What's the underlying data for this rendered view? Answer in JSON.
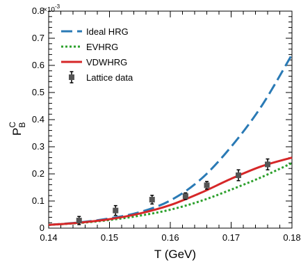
{
  "chart_data": {
    "type": "line",
    "xlabel": "T (GeV)",
    "ylabel_main": "P",
    "ylabel_sup": "C",
    "ylabel_sub": "B",
    "y_multiplier_base": "×10",
    "y_multiplier_exp": "-3",
    "xlim": [
      0.14,
      0.18
    ],
    "ylim": [
      0,
      0.8
    ],
    "x_ticks": [
      0.14,
      0.15,
      0.16,
      0.17,
      0.18
    ],
    "x_tick_labels": [
      "0.14",
      "0.15",
      "0.16",
      "0.17",
      "0.18"
    ],
    "y_ticks": [
      0,
      0.1,
      0.2,
      0.3,
      0.4,
      0.5,
      0.6,
      0.7,
      0.8
    ],
    "y_tick_labels": [
      "0",
      "0.1",
      "0.2",
      "0.3",
      "0.4",
      "0.5",
      "0.6",
      "0.7",
      "0.8"
    ],
    "legend_position": "top-left",
    "series": [
      {
        "name": "Ideal HRG",
        "style": "dashed",
        "color": "#2a7ab5",
        "x": [
          0.14,
          0.145,
          0.15,
          0.155,
          0.16,
          0.165,
          0.17,
          0.175,
          0.18
        ],
        "y": [
          0.012,
          0.021,
          0.036,
          0.059,
          0.102,
          0.18,
          0.3,
          0.45,
          0.64
        ]
      },
      {
        "name": "EVHRG",
        "style": "dotted",
        "color": "#2ca02c",
        "x": [
          0.14,
          0.145,
          0.15,
          0.155,
          0.16,
          0.165,
          0.17,
          0.175,
          0.18
        ],
        "y": [
          0.012,
          0.019,
          0.03,
          0.046,
          0.068,
          0.1,
          0.142,
          0.188,
          0.24
        ]
      },
      {
        "name": "VDWHRG",
        "style": "solid",
        "color": "#d62728",
        "x": [
          0.14,
          0.145,
          0.15,
          0.155,
          0.16,
          0.165,
          0.17,
          0.175,
          0.18
        ],
        "y": [
          0.012,
          0.02,
          0.033,
          0.054,
          0.085,
          0.13,
          0.182,
          0.228,
          0.26
        ]
      },
      {
        "name": "Lattice data",
        "style": "markers",
        "color": "#555555",
        "x": [
          0.145,
          0.151,
          0.157,
          0.1625,
          0.166,
          0.1712,
          0.176
        ],
        "y": [
          0.028,
          0.065,
          0.105,
          0.118,
          0.158,
          0.195,
          0.235
        ],
        "err": [
          0.015,
          0.018,
          0.016,
          0.012,
          0.014,
          0.02,
          0.02
        ]
      }
    ]
  }
}
